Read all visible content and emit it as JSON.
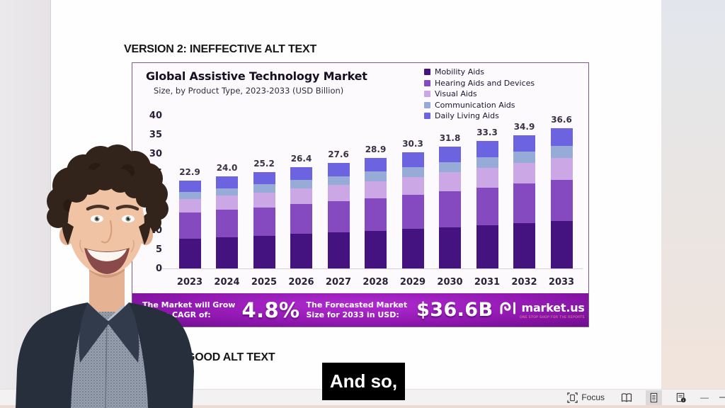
{
  "page": {
    "heading_version2": "VERSION 2: INEFFECTIVE ALT TEXT",
    "heading_version3_visible": "GOOD ALT TEXT"
  },
  "caption": {
    "text": "And so,"
  },
  "status_bar": {
    "focus_label": "Focus",
    "zoom_out_glyph": "—"
  },
  "chart": {
    "title": "Global Assistive Technology Market",
    "subtitle": "Size, by Product Type, 2023-2033 (USD Billion)",
    "banner": {
      "cagr_label_line1": "The Market will Grow",
      "cagr_label_line2": "At the CAGR of:",
      "cagr_value": "4.8%",
      "forecast_label_line1": "The Forecasted Market",
      "forecast_label_line2": "Size for 2033 in USD:",
      "forecast_value": "$36.6B",
      "brand_name": "market.us",
      "brand_tagline": "ONE STOP SHOP FOR THE REPORTS",
      "banner_color": "#8c16ab"
    }
  },
  "chart_data": {
    "type": "bar",
    "stacked": true,
    "title": "Global Assistive Technology Market",
    "subtitle": "Size, by Product Type, 2023-2033 (USD Billion)",
    "categories": [
      "2023",
      "2024",
      "2025",
      "2026",
      "2027",
      "2028",
      "2029",
      "2030",
      "2031",
      "2032",
      "2033"
    ],
    "totals": [
      22.9,
      24.0,
      25.2,
      26.4,
      27.6,
      28.9,
      30.3,
      31.8,
      33.3,
      34.9,
      36.6
    ],
    "series": [
      {
        "name": "Mobility Aids",
        "color": "#45137f",
        "values": [
          7.8,
          8.2,
          8.6,
          9.0,
          9.4,
          9.8,
          10.3,
          10.8,
          11.3,
          11.9,
          12.4
        ]
      },
      {
        "name": "Hearing Aids and Devices",
        "color": "#8549c0",
        "values": [
          6.8,
          7.1,
          7.4,
          7.8,
          8.1,
          8.5,
          8.9,
          9.4,
          9.8,
          10.3,
          10.8
        ]
      },
      {
        "name": "Visual Aids",
        "color": "#cba7e6",
        "values": [
          3.5,
          3.7,
          3.9,
          4.1,
          4.3,
          4.5,
          4.7,
          4.9,
          5.2,
          5.4,
          5.7
        ]
      },
      {
        "name": "Communication Aids",
        "color": "#97abd9",
        "values": [
          1.9,
          2.0,
          2.1,
          2.2,
          2.3,
          2.5,
          2.6,
          2.7,
          2.8,
          3.0,
          3.1
        ]
      },
      {
        "name": "Daily Living Aids",
        "color": "#6c63e0",
        "values": [
          2.9,
          3.0,
          3.2,
          3.3,
          3.5,
          3.6,
          3.8,
          4.0,
          4.2,
          4.3,
          4.6
        ]
      }
    ],
    "ylabel": "",
    "xlabel": "",
    "ylim": [
      0,
      40
    ],
    "yticks": [
      0,
      5,
      10,
      15,
      20,
      25,
      30,
      35,
      40
    ],
    "legend_position": "top-right",
    "grid": false,
    "value_labels": "totals shown above each bar"
  }
}
